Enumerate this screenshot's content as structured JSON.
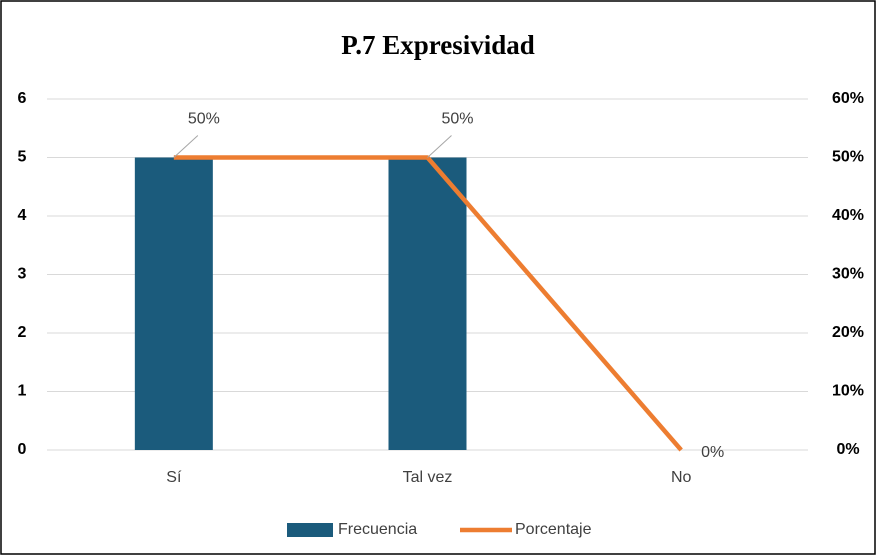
{
  "chart_data": {
    "type": "bar",
    "title": "P.7 Expresividad",
    "categories": [
      "Sí",
      "Tal vez",
      "No"
    ],
    "series": [
      {
        "name": "Frecuencia",
        "type": "bar",
        "color": "#1b5b7c",
        "values": [
          5,
          5,
          0
        ]
      },
      {
        "name": "Porcentaje",
        "type": "line",
        "axis": "y2",
        "color": "#ed7d31",
        "values": [
          50,
          50,
          0
        ],
        "value_labels": [
          "50%",
          "50%",
          "0%"
        ]
      }
    ],
    "ylim": [
      0,
      6
    ],
    "yticks": [
      0,
      1,
      2,
      3,
      4,
      5,
      6
    ],
    "y2lim": [
      0,
      60
    ],
    "y2ticks": [
      {
        "value": 0,
        "label": "0%"
      },
      {
        "value": 10,
        "label": "10%"
      },
      {
        "value": 20,
        "label": "20%"
      },
      {
        "value": 30,
        "label": "30%"
      },
      {
        "value": 40,
        "label": "40%"
      },
      {
        "value": 50,
        "label": "50%"
      },
      {
        "value": 60,
        "label": "60%"
      }
    ],
    "grid": true,
    "legend": "bottom"
  }
}
